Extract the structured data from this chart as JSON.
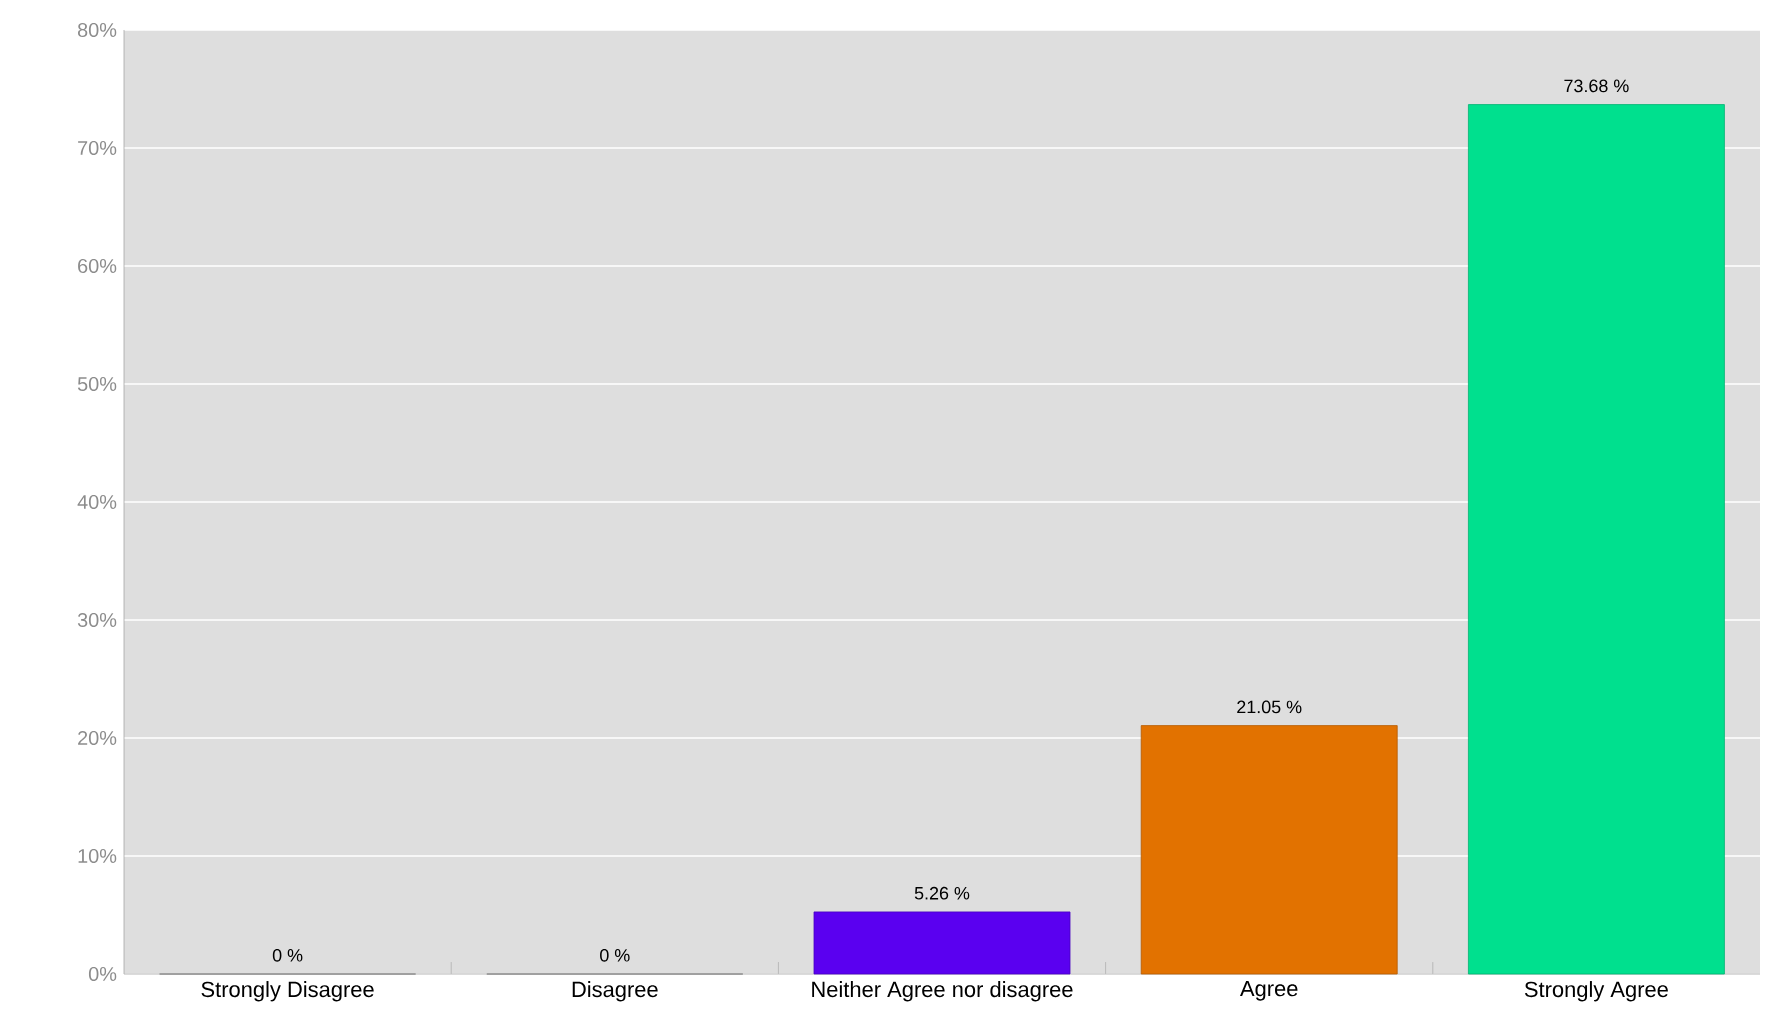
{
  "chart_data": {
    "type": "bar",
    "categories": [
      "Strongly Disagree",
      "Disagree",
      "Neither Agree nor disagree",
      "Agree",
      "Strongly Agree"
    ],
    "values": [
      0,
      0,
      5.26,
      21.05,
      73.68
    ],
    "value_labels": [
      "0 %",
      "0 %",
      "5.26 %",
      "21.05 %",
      "73.68 %"
    ],
    "colors": [
      "#a0a0a0",
      "#a0a0a0",
      "#5a00f0",
      "#e27200",
      "#00e08e"
    ],
    "ylim": [
      0,
      80
    ],
    "yticks": [
      {
        "value": 0,
        "label": "0%"
      },
      {
        "value": 10,
        "label": "10%"
      },
      {
        "value": 20,
        "label": "20%"
      },
      {
        "value": 30,
        "label": "30%"
      },
      {
        "value": 40,
        "label": "40%"
      },
      {
        "value": 50,
        "label": "50%"
      },
      {
        "value": 60,
        "label": "60%"
      },
      {
        "value": 70,
        "label": "70%"
      },
      {
        "value": 80,
        "label": "80%"
      }
    ],
    "grid": "y"
  }
}
